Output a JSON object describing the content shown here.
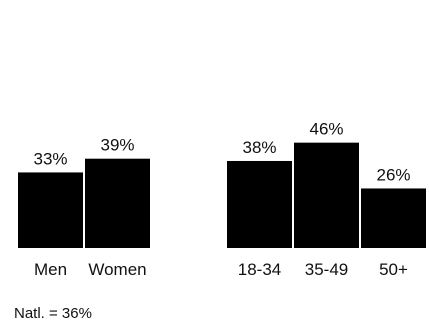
{
  "chart_data": {
    "type": "bar",
    "bar_color": "#000000",
    "text_color": "#111111",
    "groups": [
      {
        "categories": [
          "Men",
          "Women"
        ],
        "values": [
          33,
          39
        ],
        "value_labels": [
          "33%",
          "39%"
        ]
      },
      {
        "categories": [
          "18-34",
          "35-49",
          "50+"
        ],
        "values": [
          38,
          46,
          26
        ],
        "value_labels": [
          "38%",
          "46%",
          "26%"
        ]
      }
    ],
    "note": "Natl. = 36%"
  }
}
